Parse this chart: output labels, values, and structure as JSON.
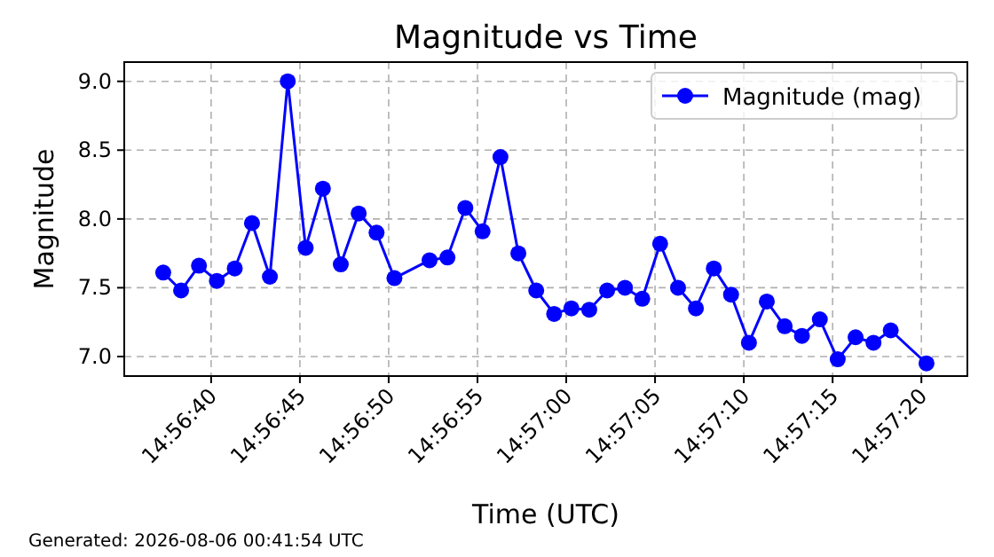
{
  "chart_data": {
    "type": "line",
    "title": "Magnitude vs Time",
    "xlabel": "Time (UTC)",
    "ylabel": "Magnitude",
    "annotations": [
      "Generated: 2026-08-06 00:41:54 UTC"
    ],
    "x": [
      14.94369,
      14.94397,
      14.94425,
      14.94453,
      14.94481,
      14.94508,
      14.94536,
      14.94564,
      14.94592,
      14.94619,
      14.94647,
      14.94675,
      14.94703,
      14.94731,
      14.94786,
      14.94814,
      14.94842,
      14.94869,
      14.94897,
      14.94925,
      14.94953,
      14.94981,
      14.95008,
      14.95036,
      14.95064,
      14.95092,
      14.95119,
      14.95147,
      14.95175,
      14.95203,
      14.95231,
      14.95258,
      14.95286,
      14.95314,
      14.95342,
      14.95369,
      14.95397,
      14.95425,
      14.95453,
      14.95481,
      14.95508,
      14.95564
    ],
    "series": [
      {
        "name": "Magnitude (mag)",
        "color": "#0000ff",
        "values": [
          7.61,
          7.48,
          7.66,
          7.55,
          7.64,
          7.97,
          7.58,
          9.0,
          7.79,
          8.22,
          7.67,
          8.04,
          7.9,
          7.57,
          7.7,
          7.72,
          8.08,
          7.91,
          8.45,
          7.75,
          7.48,
          7.31,
          7.35,
          7.34,
          7.48,
          7.5,
          7.42,
          7.82,
          7.5,
          7.35,
          7.64,
          7.45,
          7.1,
          7.4,
          7.22,
          7.15,
          7.27,
          6.98,
          7.14,
          7.1,
          7.19,
          6.95
        ]
      }
    ],
    "xlim": [
      14.94308,
      14.95628
    ],
    "xticks": [
      {
        "value": 14.94444,
        "label": "14:56:40"
      },
      {
        "value": 14.94583,
        "label": "14:56:45"
      },
      {
        "value": 14.94722,
        "label": "14:56:50"
      },
      {
        "value": 14.94861,
        "label": "14:56:55"
      },
      {
        "value": 14.95,
        "label": "14:57:00"
      },
      {
        "value": 14.95139,
        "label": "14:57:05"
      },
      {
        "value": 14.95278,
        "label": "14:57:10"
      },
      {
        "value": 14.95417,
        "label": "14:57:15"
      },
      {
        "value": 14.95556,
        "label": "14:57:20"
      }
    ],
    "ylim": [
      6.858,
      9.14
    ],
    "yticks": [
      {
        "value": 7,
        "label": "7.0"
      },
      {
        "value": 7.5,
        "label": "7.5"
      },
      {
        "value": 8,
        "label": "8.0"
      },
      {
        "value": 8.5,
        "label": "8.5"
      },
      {
        "value": 9,
        "label": "9.0"
      }
    ],
    "grid": true,
    "legend": "top right",
    "marker": "circle",
    "line_style": "solid"
  }
}
